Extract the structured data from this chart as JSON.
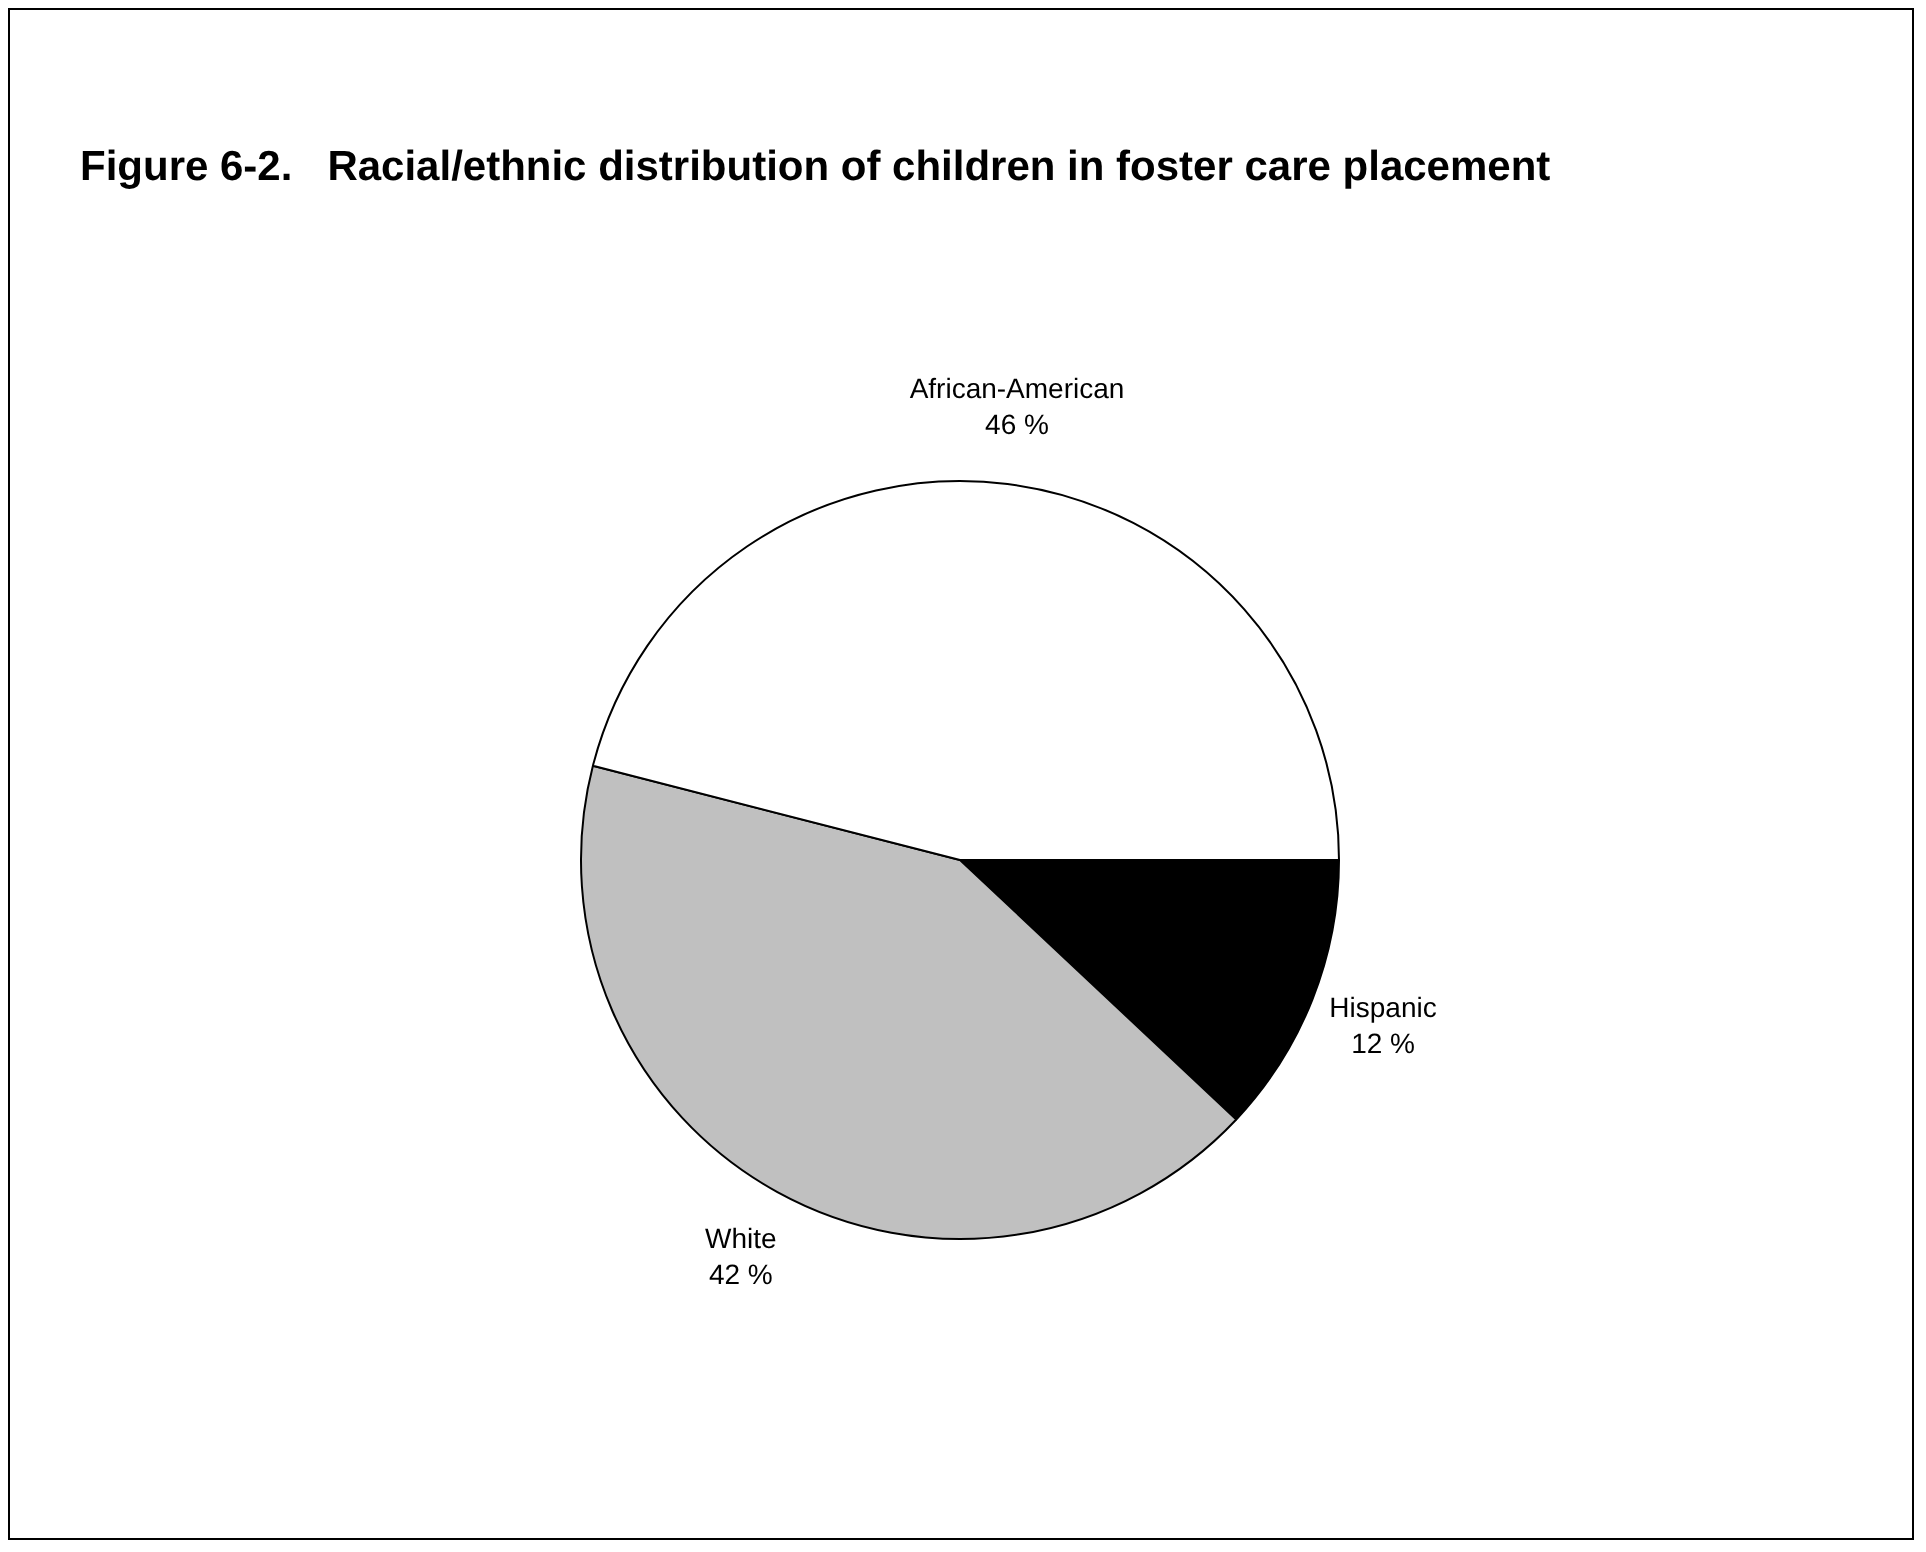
{
  "chart_data": {
    "type": "pie",
    "title": "Figure 6-2.   Racial/ethnic distribution of children in foster care placement",
    "categories": [
      "Hispanic",
      "White",
      "African-American"
    ],
    "values": [
      12,
      42,
      46
    ],
    "colors": [
      "#000000",
      "#c0c0c0",
      "#ffffff"
    ],
    "value_labels": [
      "12 %",
      "42 %",
      "46 %"
    ],
    "legend": false
  }
}
